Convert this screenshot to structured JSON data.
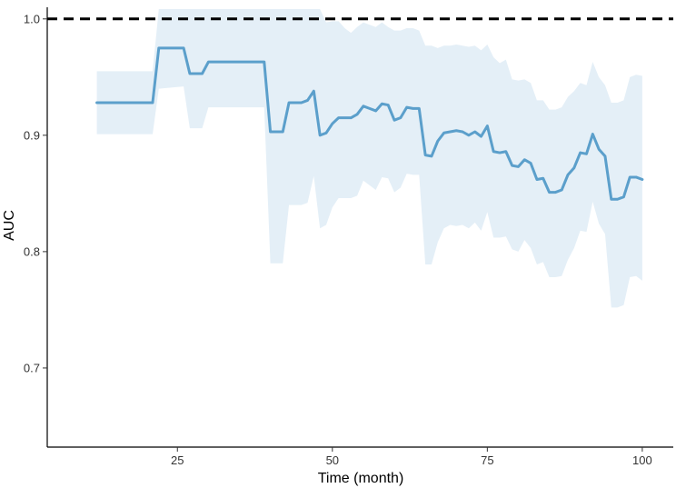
{
  "chart_data": {
    "type": "line",
    "title": "",
    "xlabel": "Time (month)",
    "ylabel": "AUC",
    "xlim": [
      4,
      105
    ],
    "ylim": [
      0.632,
      1.01
    ],
    "xticks": [
      25,
      50,
      75,
      100
    ],
    "yticks": [
      0.7,
      0.8,
      0.9,
      1.0
    ],
    "xtick_labels": [
      "25",
      "50",
      "75",
      "100"
    ],
    "ytick_labels": [
      "0.7",
      "0.8",
      "0.9",
      "1.0"
    ],
    "grid": false,
    "reference_line": {
      "y": 1.0,
      "style": "dashed",
      "color": "#000000"
    },
    "colors": {
      "line": "#5B9FCB",
      "band": "#E4EFF7",
      "axis": "#000000"
    },
    "series": [
      {
        "x": [
          12,
          21,
          22,
          26,
          27,
          28,
          29,
          30,
          31,
          36,
          39,
          40,
          42,
          43,
          45,
          46,
          47,
          48,
          49,
          50,
          51,
          52,
          53,
          54,
          55,
          56,
          57,
          58,
          59,
          60,
          61,
          62,
          63,
          64,
          65,
          66,
          67,
          68,
          69,
          70,
          71,
          72,
          73,
          74,
          75,
          76,
          77,
          78,
          79,
          80,
          81,
          82,
          83,
          84,
          85,
          86,
          87,
          88,
          89,
          90,
          91,
          92,
          93,
          94,
          95,
          96,
          97,
          98,
          99,
          100
        ],
        "y": [
          0.928,
          0.928,
          0.975,
          0.975,
          0.953,
          0.953,
          0.953,
          0.963,
          0.963,
          0.963,
          0.963,
          0.903,
          0.903,
          0.928,
          0.928,
          0.93,
          0.938,
          0.9,
          0.902,
          0.91,
          0.915,
          0.915,
          0.915,
          0.918,
          0.925,
          0.923,
          0.921,
          0.927,
          0.926,
          0.913,
          0.915,
          0.924,
          0.923,
          0.923,
          0.883,
          0.882,
          0.895,
          0.902,
          0.903,
          0.904,
          0.903,
          0.9,
          0.903,
          0.899,
          0.908,
          0.886,
          0.885,
          0.886,
          0.874,
          0.873,
          0.879,
          0.876,
          0.862,
          0.863,
          0.851,
          0.851,
          0.853,
          0.866,
          0.872,
          0.885,
          0.884,
          0.901,
          0.888,
          0.882,
          0.845,
          0.845,
          0.847,
          0.864,
          0.864,
          0.862
        ]
      }
    ],
    "band": {
      "x": [
        12,
        21,
        22,
        26,
        27,
        28,
        29,
        30,
        31,
        36,
        39,
        40,
        42,
        43,
        45,
        46,
        47,
        48,
        49,
        50,
        51,
        52,
        53,
        54,
        55,
        56,
        57,
        58,
        59,
        60,
        61,
        62,
        63,
        64,
        65,
        66,
        67,
        68,
        69,
        70,
        71,
        72,
        73,
        74,
        75,
        76,
        77,
        78,
        79,
        80,
        81,
        82,
        83,
        84,
        85,
        86,
        87,
        88,
        89,
        90,
        91,
        92,
        93,
        94,
        95,
        96,
        97,
        98,
        99,
        100
      ],
      "upper": [
        0.955,
        0.955,
        1.01,
        1.01,
        1.01,
        1.01,
        1.01,
        1.01,
        1.01,
        1.01,
        1.01,
        1.01,
        1.01,
        1.01,
        1.01,
        1.01,
        1.01,
        1.01,
        0.997,
        0.998,
        0.998,
        0.992,
        0.988,
        0.993,
        0.997,
        0.995,
        0.993,
        0.997,
        0.993,
        0.99,
        0.99,
        0.992,
        0.992,
        0.99,
        0.977,
        0.977,
        0.975,
        0.977,
        0.977,
        0.978,
        0.977,
        0.976,
        0.977,
        0.973,
        0.978,
        0.967,
        0.962,
        0.965,
        0.948,
        0.947,
        0.948,
        0.945,
        0.93,
        0.93,
        0.922,
        0.922,
        0.924,
        0.933,
        0.938,
        0.945,
        0.943,
        0.963,
        0.95,
        0.943,
        0.928,
        0.928,
        0.93,
        0.95,
        0.952,
        0.951
      ],
      "lower": [
        0.901,
        0.901,
        0.94,
        0.942,
        0.906,
        0.906,
        0.906,
        0.924,
        0.924,
        0.924,
        0.924,
        0.79,
        0.79,
        0.84,
        0.84,
        0.842,
        0.865,
        0.82,
        0.823,
        0.838,
        0.846,
        0.846,
        0.846,
        0.848,
        0.861,
        0.857,
        0.853,
        0.864,
        0.863,
        0.851,
        0.855,
        0.867,
        0.866,
        0.866,
        0.789,
        0.789,
        0.808,
        0.82,
        0.823,
        0.822,
        0.823,
        0.82,
        0.825,
        0.818,
        0.834,
        0.812,
        0.812,
        0.813,
        0.802,
        0.8,
        0.81,
        0.803,
        0.789,
        0.791,
        0.778,
        0.778,
        0.779,
        0.793,
        0.803,
        0.818,
        0.817,
        0.843,
        0.824,
        0.815,
        0.752,
        0.752,
        0.754,
        0.778,
        0.779,
        0.775
      ]
    }
  }
}
